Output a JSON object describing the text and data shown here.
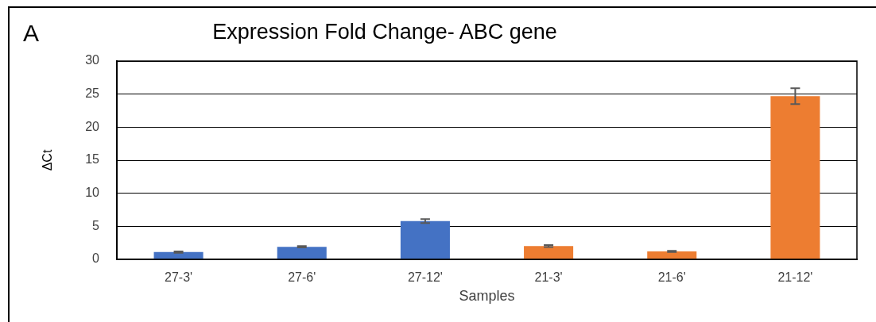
{
  "chart_data": {
    "type": "bar",
    "title": "Expression Fold Change- ABC gene",
    "xlabel": "Samples",
    "ylabel": "ΔCt",
    "annotations": [
      "A"
    ],
    "categories": [
      "27-3'",
      "27-6'",
      "27-12'",
      "21-3'",
      "21-6'",
      "21-12'"
    ],
    "values": [
      1.1,
      1.9,
      5.8,
      2.0,
      1.2,
      24.7
    ],
    "errors": [
      0.1,
      0.1,
      0.3,
      0.15,
      0.1,
      1.2
    ],
    "colors": [
      "#4472c4",
      "#4472c4",
      "#4472c4",
      "#ed7d31",
      "#ed7d31",
      "#ed7d31"
    ],
    "ylim": [
      0,
      30
    ],
    "yticks": [
      0,
      5,
      10,
      15,
      20,
      25,
      30
    ],
    "grid": "y"
  }
}
